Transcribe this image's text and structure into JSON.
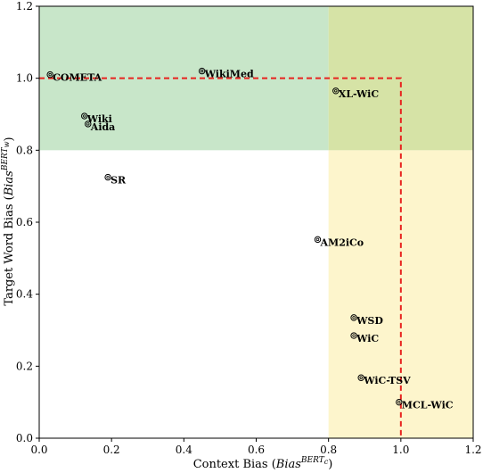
{
  "chart_data": {
    "type": "scatter",
    "xlabel_main": "Context Bias (",
    "xlabel_bias": "Bias",
    "xlabel_sup": "BERT",
    "xlabel_sub": "c",
    "xlabel_close": ")",
    "ylabel_main": "Target Word Bias (",
    "ylabel_bias": "Bias",
    "ylabel_sup": "BERT",
    "ylabel_sub": "w",
    "ylabel_close": ")",
    "xlim": [
      0.0,
      1.2
    ],
    "ylim": [
      0.0,
      1.2
    ],
    "xticks": [
      "0.0",
      "0.2",
      "0.4",
      "0.6",
      "0.8",
      "1.0",
      "1.2"
    ],
    "yticks": [
      "0.0",
      "0.2",
      "0.4",
      "0.6",
      "0.8",
      "1.0",
      "1.2"
    ],
    "regions": [
      {
        "x": [
          0.0,
          0.8
        ],
        "y": [
          0.8,
          1.2
        ],
        "color": "#c8e6c9"
      },
      {
        "x": [
          0.8,
          1.2
        ],
        "y": [
          0.0,
          0.8
        ],
        "color": "#fdf5cc"
      },
      {
        "x": [
          0.8,
          1.2
        ],
        "y": [
          0.8,
          1.2
        ],
        "color": "#d6e3a6"
      }
    ],
    "threshold_line": {
      "x": 1.0,
      "y": 1.0,
      "color": "#e8231f"
    },
    "points": [
      {
        "label": "COMETA",
        "x": 0.03,
        "y": 1.01
      },
      {
        "label": "WikiMed",
        "x": 0.45,
        "y": 1.02
      },
      {
        "label": "XL-WiC",
        "x": 0.82,
        "y": 0.965
      },
      {
        "label": "Wiki",
        "x": 0.125,
        "y": 0.895
      },
      {
        "label": "Aida",
        "x": 0.135,
        "y": 0.873
      },
      {
        "label": "SR",
        "x": 0.19,
        "y": 0.725
      },
      {
        "label": "AM2iCo",
        "x": 0.77,
        "y": 0.552
      },
      {
        "label": "WSD",
        "x": 0.87,
        "y": 0.335
      },
      {
        "label": "WiC",
        "x": 0.87,
        "y": 0.285
      },
      {
        "label": "WiC-TSV",
        "x": 0.89,
        "y": 0.168
      },
      {
        "label": "MCL-WiC",
        "x": 0.995,
        "y": 0.1
      }
    ]
  }
}
